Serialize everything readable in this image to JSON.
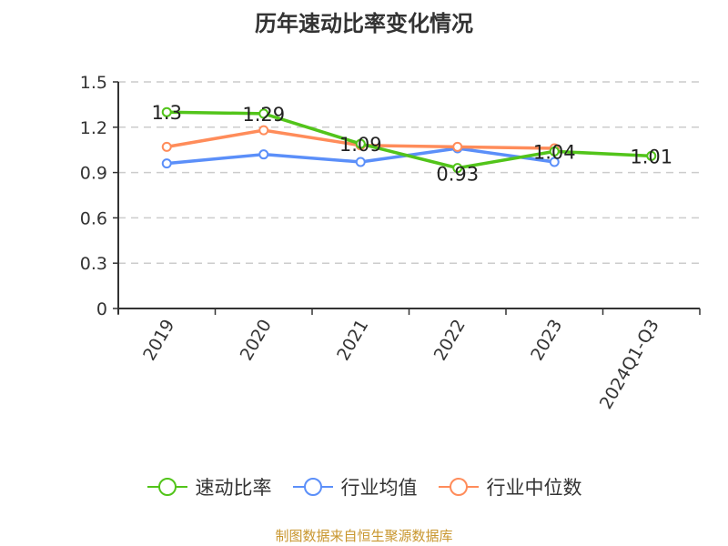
{
  "title": "历年速动比率变化情况",
  "source": "制图数据来自恒生聚源数据库",
  "legend": [
    {
      "label": "速动比率",
      "color": "#52c41a"
    },
    {
      "label": "行业均值",
      "color": "#5b8ff9"
    },
    {
      "label": "行业中位数",
      "color": "#ff8c5a"
    }
  ],
  "chart_data": {
    "type": "line",
    "title": "历年速动比率变化情况",
    "xlabel": "",
    "ylabel": "",
    "categories": [
      "2019",
      "2020",
      "2021",
      "2022",
      "2023",
      "2024Q1-Q3"
    ],
    "ylim": [
      0,
      1.5
    ],
    "yticks": [
      0,
      0.3,
      0.6,
      0.9,
      1.2,
      1.5
    ],
    "grid": true,
    "legend_position": "bottom",
    "series": [
      {
        "name": "速动比率",
        "color": "#52c41a",
        "values": [
          1.3,
          1.29,
          1.09,
          0.93,
          1.04,
          1.01
        ],
        "labels": [
          "1.3",
          "1.29",
          "1.09",
          "0.93",
          "1.04",
          "1.01"
        ]
      },
      {
        "name": "行业均值",
        "color": "#5b8ff9",
        "values": [
          0.96,
          1.02,
          0.97,
          1.06,
          0.97,
          null
        ]
      },
      {
        "name": "行业中位数",
        "color": "#ff8c5a",
        "values": [
          1.07,
          1.18,
          1.08,
          1.07,
          1.06,
          null
        ]
      }
    ]
  }
}
